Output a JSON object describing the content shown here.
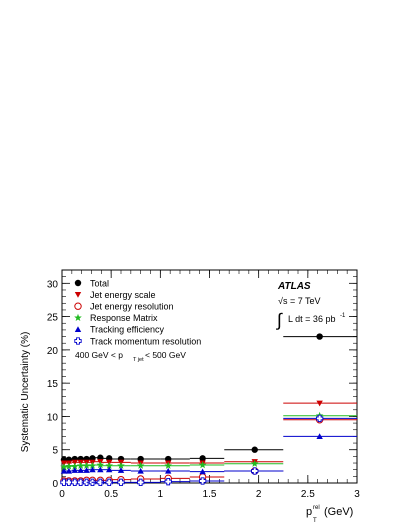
{
  "chart_data": {
    "type": "scatter",
    "title": "",
    "xlabel_main": "p",
    "xlabel_sup": "rel",
    "xlabel_sub": "T",
    "xlabel_unit": " (GeV)",
    "ylabel": "Systematic Uncertainty (%)",
    "xlim": [
      0,
      3
    ],
    "ylim": [
      0,
      32
    ],
    "x_ticks": [
      0,
      0.5,
      1,
      1.5,
      2,
      2.5,
      3
    ],
    "x_tick_labels": [
      "0",
      "0.5",
      "1",
      "1.5",
      "2",
      "2.5",
      "3"
    ],
    "y_ticks": [
      0,
      5,
      10,
      15,
      20,
      25,
      30
    ],
    "y_tick_labels": [
      "0",
      "5",
      "10",
      "15",
      "20",
      "25",
      "30"
    ],
    "grid": false,
    "legend_position": "top-left",
    "bin_edges": [
      0,
      0.05,
      0.1,
      0.15,
      0.2,
      0.25,
      0.3,
      0.4,
      0.5,
      0.7,
      1.0,
      1.3,
      1.65,
      2.25,
      3.0
    ],
    "bin_centers": [
      0.02,
      0.07,
      0.13,
      0.19,
      0.25,
      0.31,
      0.39,
      0.48,
      0.6,
      0.8,
      1.08,
      1.43,
      1.96,
      2.62
    ],
    "series": [
      {
        "name": "Total",
        "marker": "circle-filled",
        "color": "#000000",
        "values": [
          3.5,
          3.5,
          3.6,
          3.6,
          3.6,
          3.7,
          3.8,
          3.7,
          3.6,
          3.6,
          3.6,
          3.7,
          5.0,
          22.0
        ]
      },
      {
        "name": "Jet energy scale",
        "marker": "triangle-down",
        "color": "#cc0000",
        "values": [
          3.0,
          3.0,
          3.1,
          3.1,
          3.1,
          3.1,
          3.2,
          3.1,
          3.1,
          3.0,
          3.0,
          3.0,
          3.2,
          12.0
        ]
      },
      {
        "name": "Jet energy resolution",
        "marker": "circle-open",
        "color": "#cc0000",
        "values": [
          0.3,
          0.3,
          0.3,
          0.3,
          0.4,
          0.4,
          0.4,
          0.4,
          0.5,
          0.6,
          0.7,
          0.9,
          1.8,
          9.5
        ]
      },
      {
        "name": "Response Matrix",
        "marker": "star",
        "color": "#22bb22",
        "values": [
          2.4,
          2.5,
          2.5,
          2.6,
          2.6,
          2.6,
          2.7,
          2.6,
          2.6,
          2.6,
          2.6,
          2.7,
          2.9,
          10.1
        ]
      },
      {
        "name": "Tracking efficiency",
        "marker": "triangle-up",
        "color": "#0000cc",
        "values": [
          1.8,
          1.8,
          1.9,
          1.9,
          1.9,
          2.0,
          2.0,
          2.0,
          1.9,
          1.8,
          1.8,
          1.7,
          1.8,
          7.0
        ]
      },
      {
        "name": "Track momentum resolution",
        "marker": "cross-open",
        "color": "#0000cc",
        "values": [
          0.1,
          0.1,
          0.1,
          0.1,
          0.1,
          0.1,
          0.1,
          0.1,
          0.1,
          0.1,
          0.2,
          0.3,
          1.8,
          9.7
        ]
      }
    ],
    "annotations": {
      "experiment": "ATLAS",
      "energy": "√s = 7 TeV",
      "luminosity": "L dt = 36 pb",
      "luminosity_exp": "-1",
      "integral": "∫",
      "selection_pre": "400 GeV < p",
      "selection_sub": "T jet",
      "selection_post": " < 500 GeV"
    }
  }
}
